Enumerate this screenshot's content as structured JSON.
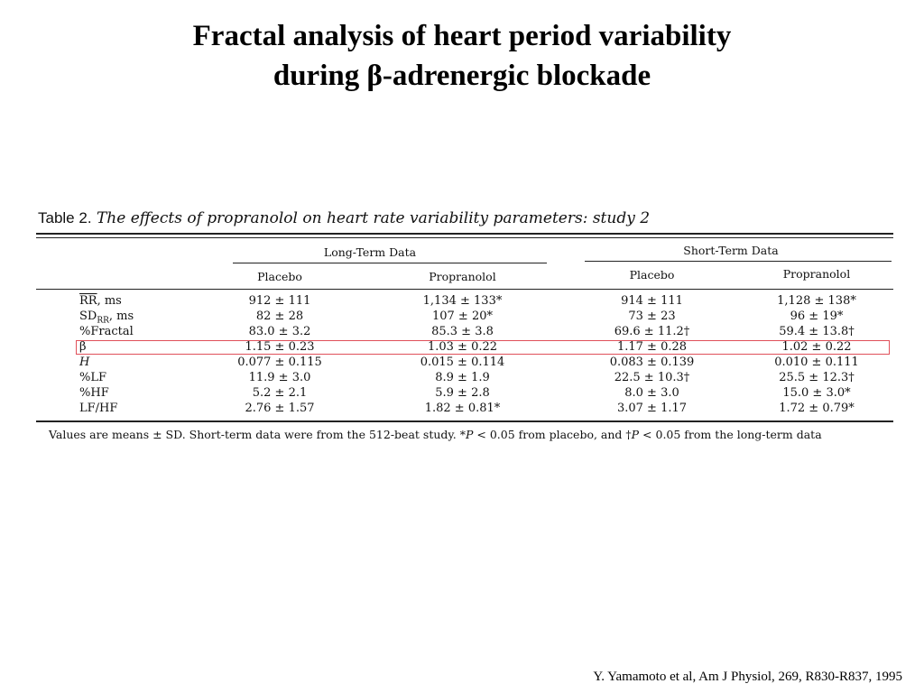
{
  "slide": {
    "title_line1": "Fractal analysis of heart period variability",
    "title_line2": "during β-adrenergic blockade",
    "citation": "Y. Yamamoto et al, Am J Physiol, 269, R830-R837, 1995"
  },
  "table": {
    "caption_label": "Table 2.",
    "caption_text": "The effects of propranolol on heart rate variability parameters: study 2",
    "groups": [
      "Long-Term Data",
      "Short-Term Data"
    ],
    "subheaders": [
      "Placebo",
      "Propranolol",
      "Placebo",
      "Propranolol"
    ],
    "rows": [
      {
        "label": "RR",
        "label_suffix": ", ms",
        "values": [
          "912 ± 111",
          "1,134 ± 133*",
          "914 ± 111",
          "1,128 ± 138*"
        ]
      },
      {
        "label": "SD",
        "label_sub": "RR",
        "label_suffix": ", ms",
        "values": [
          "82 ± 28",
          "107 ± 20*",
          "73 ± 23",
          "96 ± 19*"
        ]
      },
      {
        "label": "%Fractal",
        "values": [
          "83.0 ± 3.2",
          "85.3 ± 3.8",
          "69.6 ± 11.2†",
          "59.4 ± 13.8†"
        ]
      },
      {
        "label": "β",
        "values": [
          "1.15 ± 0.23",
          "1.03 ± 0.22",
          "1.17 ± 0.28",
          "1.02 ± 0.22"
        ]
      },
      {
        "label": "H",
        "values": [
          "0.077 ± 0.115",
          "0.015 ± 0.114",
          "0.083 ± 0.139",
          "0.010 ± 0.111"
        ]
      },
      {
        "label": "%LF",
        "values": [
          "11.9 ± 3.0",
          "8.9 ± 1.9",
          "22.5 ± 10.3†",
          "25.5 ± 12.3†"
        ]
      },
      {
        "label": "%HF",
        "values": [
          "5.2 ± 2.1",
          "5.9 ± 2.8",
          "8.0 ± 3.0",
          "15.0 ± 3.0*"
        ]
      },
      {
        "label": "LF/HF",
        "values": [
          "2.76 ± 1.57",
          "1.82 ± 0.81*",
          "3.07 ± 1.17",
          "1.72 ± 0.79*"
        ]
      }
    ],
    "footnote_a": "Values are means ± SD. Short-term data were from the 512-beat study. *",
    "footnote_p1": "P",
    "footnote_b": " < 0.05 from placebo, and †",
    "footnote_p2": "P",
    "footnote_c": " < 0.05 from the long-term data"
  },
  "colors": {
    "highlight": "#e0505a"
  }
}
